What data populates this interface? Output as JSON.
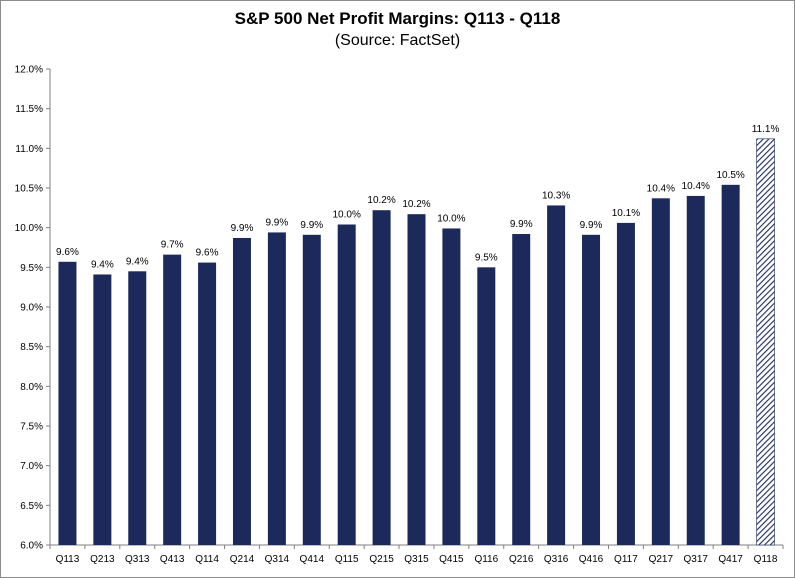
{
  "chart_data": {
    "type": "bar",
    "title": "S&P 500 Net Profit Margins: Q113 - Q118",
    "subtitle": "(Source: FactSet)",
    "xlabel": "",
    "ylabel": "",
    "ylim": [
      6.0,
      12.0
    ],
    "yticks": [
      "6.0%",
      "6.5%",
      "7.0%",
      "7.5%",
      "8.0%",
      "8.5%",
      "9.0%",
      "9.5%",
      "10.0%",
      "10.5%",
      "11.0%",
      "11.5%",
      "12.0%"
    ],
    "ytick_values": [
      6.0,
      6.5,
      7.0,
      7.5,
      8.0,
      8.5,
      9.0,
      9.5,
      10.0,
      10.5,
      11.0,
      11.5,
      12.0
    ],
    "grid": false,
    "legend": "none",
    "categories": [
      "Q113",
      "Q213",
      "Q313",
      "Q413",
      "Q114",
      "Q214",
      "Q314",
      "Q414",
      "Q115",
      "Q215",
      "Q315",
      "Q415",
      "Q116",
      "Q216",
      "Q316",
      "Q416",
      "Q117",
      "Q217",
      "Q317",
      "Q417",
      "Q118"
    ],
    "values": [
      9.57,
      9.41,
      9.45,
      9.66,
      9.56,
      9.87,
      9.94,
      9.91,
      10.04,
      10.22,
      10.17,
      9.99,
      9.5,
      9.92,
      10.28,
      9.91,
      10.06,
      10.37,
      10.4,
      10.54,
      11.12
    ],
    "labels": [
      "9.6%",
      "9.4%",
      "9.4%",
      "9.7%",
      "9.6%",
      "9.9%",
      "9.9%",
      "9.9%",
      "10.0%",
      "10.2%",
      "10.2%",
      "10.0%",
      "9.5%",
      "9.9%",
      "10.3%",
      "9.9%",
      "10.1%",
      "10.4%",
      "10.4%",
      "10.5%",
      "11.1%"
    ],
    "estimated": [
      false,
      false,
      false,
      false,
      false,
      false,
      false,
      false,
      false,
      false,
      false,
      false,
      false,
      false,
      false,
      false,
      false,
      false,
      false,
      false,
      true
    ],
    "colors": {
      "bar": "#1b2a5a",
      "axis": "#7f7f7f",
      "text": "#000000"
    }
  }
}
